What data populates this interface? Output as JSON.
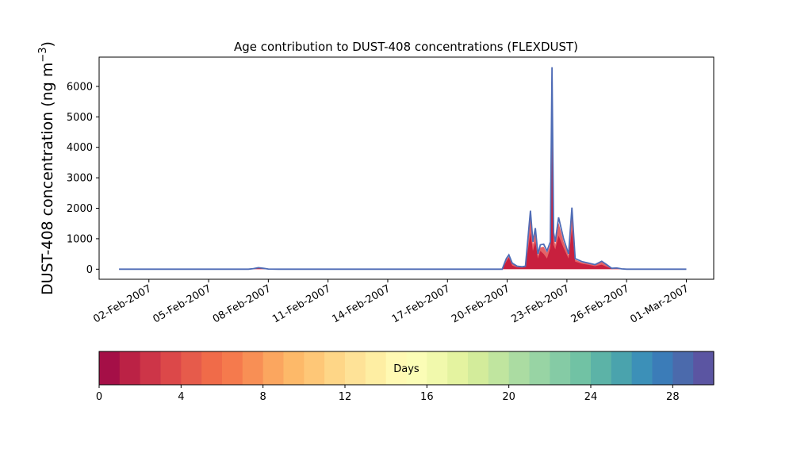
{
  "chart_data": {
    "type": "area",
    "title": "Age contribution to DUST-408 concentrations (FLEXDUST)",
    "ylabel": "DUST-408 concentration (ng m",
    "ylabel_sup": "−3",
    "ylabel_close": ")",
    "xlabel": "",
    "ylim": [
      -330,
      6960
    ],
    "yticks": [
      0,
      1000,
      2000,
      3000,
      4000,
      5000,
      6000
    ],
    "xlim": [
      "2007-01-30T12:00",
      "2007-03-02T09:00"
    ],
    "xticks": [
      "02-Feb-2007",
      "05-Feb-2007",
      "08-Feb-2007",
      "11-Feb-2007",
      "14-Feb-2007",
      "17-Feb-2007",
      "20-Feb-2007",
      "23-Feb-2007",
      "26-Feb-2007",
      "01-Mar-2007"
    ],
    "xtick_dates": [
      "2007-02-02",
      "2007-02-05",
      "2007-02-08",
      "2007-02-11",
      "2007-02-14",
      "2007-02-17",
      "2007-02-20",
      "2007-02-23",
      "2007-02-26",
      "2007-03-01"
    ],
    "grid": false,
    "total": [
      {
        "t": "2007-01-31T12:00",
        "v": 0
      },
      {
        "t": "2007-02-07T00:00",
        "v": 0
      },
      {
        "t": "2007-02-07T06:00",
        "v": 20
      },
      {
        "t": "2007-02-07T12:00",
        "v": 50
      },
      {
        "t": "2007-02-07T18:00",
        "v": 30
      },
      {
        "t": "2007-02-08T00:00",
        "v": 5
      },
      {
        "t": "2007-02-08T12:00",
        "v": 0
      },
      {
        "t": "2007-02-19T18:00",
        "v": 0
      },
      {
        "t": "2007-02-19T23:00",
        "v": 350
      },
      {
        "t": "2007-02-20T02:00",
        "v": 470
      },
      {
        "t": "2007-02-20T06:00",
        "v": 200
      },
      {
        "t": "2007-02-20T12:00",
        "v": 100
      },
      {
        "t": "2007-02-20T18:00",
        "v": 80
      },
      {
        "t": "2007-02-20T22:00",
        "v": 100
      },
      {
        "t": "2007-02-21T04:00",
        "v": 1920
      },
      {
        "t": "2007-02-21T07:00",
        "v": 900
      },
      {
        "t": "2007-02-21T10:00",
        "v": 1350
      },
      {
        "t": "2007-02-21T13:00",
        "v": 500
      },
      {
        "t": "2007-02-21T16:00",
        "v": 800
      },
      {
        "t": "2007-02-21T20:00",
        "v": 820
      },
      {
        "t": "2007-02-22T00:00",
        "v": 600
      },
      {
        "t": "2007-02-22T04:00",
        "v": 900
      },
      {
        "t": "2007-02-22T06:00",
        "v": 6630
      },
      {
        "t": "2007-02-22T08:00",
        "v": 1200
      },
      {
        "t": "2007-02-22T10:00",
        "v": 900
      },
      {
        "t": "2007-02-22T14:00",
        "v": 1700
      },
      {
        "t": "2007-02-22T20:00",
        "v": 1000
      },
      {
        "t": "2007-02-23T02:00",
        "v": 500
      },
      {
        "t": "2007-02-23T06:00",
        "v": 2020
      },
      {
        "t": "2007-02-23T10:00",
        "v": 350
      },
      {
        "t": "2007-02-23T18:00",
        "v": 250
      },
      {
        "t": "2007-02-24T02:00",
        "v": 200
      },
      {
        "t": "2007-02-24T10:00",
        "v": 150
      },
      {
        "t": "2007-02-24T18:00",
        "v": 260
      },
      {
        "t": "2007-02-25T00:00",
        "v": 150
      },
      {
        "t": "2007-02-25T06:00",
        "v": 30
      },
      {
        "t": "2007-02-25T12:00",
        "v": 40
      },
      {
        "t": "2007-02-25T18:00",
        "v": 10
      },
      {
        "t": "2007-02-26T00:00",
        "v": 0
      },
      {
        "t": "2007-03-01T00:00",
        "v": 0
      }
    ],
    "young_fraction": [
      {
        "t": "2007-01-31T12:00",
        "v": 0
      },
      {
        "t": "2007-02-07T06:00",
        "v": 10
      },
      {
        "t": "2007-02-07T12:00",
        "v": 30
      },
      {
        "t": "2007-02-07T18:00",
        "v": 15
      },
      {
        "t": "2007-02-08T00:00",
        "v": 0
      },
      {
        "t": "2007-02-19T18:00",
        "v": 0
      },
      {
        "t": "2007-02-19T23:00",
        "v": 250
      },
      {
        "t": "2007-02-20T02:00",
        "v": 380
      },
      {
        "t": "2007-02-20T06:00",
        "v": 120
      },
      {
        "t": "2007-02-20T12:00",
        "v": 60
      },
      {
        "t": "2007-02-20T18:00",
        "v": 50
      },
      {
        "t": "2007-02-20T22:00",
        "v": 70
      },
      {
        "t": "2007-02-21T04:00",
        "v": 1200
      },
      {
        "t": "2007-02-21T07:00",
        "v": 600
      },
      {
        "t": "2007-02-21T10:00",
        "v": 900
      },
      {
        "t": "2007-02-21T13:00",
        "v": 350
      },
      {
        "t": "2007-02-21T16:00",
        "v": 600
      },
      {
        "t": "2007-02-21T20:00",
        "v": 500
      },
      {
        "t": "2007-02-22T00:00",
        "v": 350
      },
      {
        "t": "2007-02-22T04:00",
        "v": 700
      },
      {
        "t": "2007-02-22T06:00",
        "v": 4000
      },
      {
        "t": "2007-02-22T08:00",
        "v": 800
      },
      {
        "t": "2007-02-22T10:00",
        "v": 650
      },
      {
        "t": "2007-02-22T14:00",
        "v": 1100
      },
      {
        "t": "2007-02-22T20:00",
        "v": 700
      },
      {
        "t": "2007-02-23T02:00",
        "v": 350
      },
      {
        "t": "2007-02-23T06:00",
        "v": 1300
      },
      {
        "t": "2007-02-23T10:00",
        "v": 250
      },
      {
        "t": "2007-02-23T18:00",
        "v": 180
      },
      {
        "t": "2007-02-24T02:00",
        "v": 140
      },
      {
        "t": "2007-02-24T10:00",
        "v": 100
      },
      {
        "t": "2007-02-24T18:00",
        "v": 150
      },
      {
        "t": "2007-02-25T00:00",
        "v": 80
      },
      {
        "t": "2007-02-25T06:00",
        "v": 15
      },
      {
        "t": "2007-02-25T12:00",
        "v": 20
      },
      {
        "t": "2007-02-26T00:00",
        "v": 0
      },
      {
        "t": "2007-03-01T00:00",
        "v": 0
      }
    ],
    "colorbar": {
      "label": "Days",
      "min": 0,
      "max": 30,
      "ticks": [
        0,
        4,
        8,
        12,
        16,
        20,
        24,
        28
      ],
      "colors": [
        "#a50f47",
        "#bb2245",
        "#cd3548",
        "#dc4849",
        "#e65b4b",
        "#f06b49",
        "#f57a4d",
        "#f88f55",
        "#fba65f",
        "#fdb969",
        "#fec777",
        "#fed687",
        "#fee297",
        "#feeea3",
        "#fff9b3",
        "#fbfdb6",
        "#f1f9ac",
        "#e4f3a0",
        "#d3ec9b",
        "#c0e59f",
        "#abdca2",
        "#98d4a4",
        "#85cba5",
        "#71c2a4",
        "#5cb3a7",
        "#4aa3ad",
        "#3c90b8",
        "#3b7cb8",
        "#4b6aac",
        "#5b55a2"
      ]
    },
    "colors": {
      "outline": "#4f6cb6",
      "young": "#c8203e",
      "mid": "#e1474b"
    }
  }
}
